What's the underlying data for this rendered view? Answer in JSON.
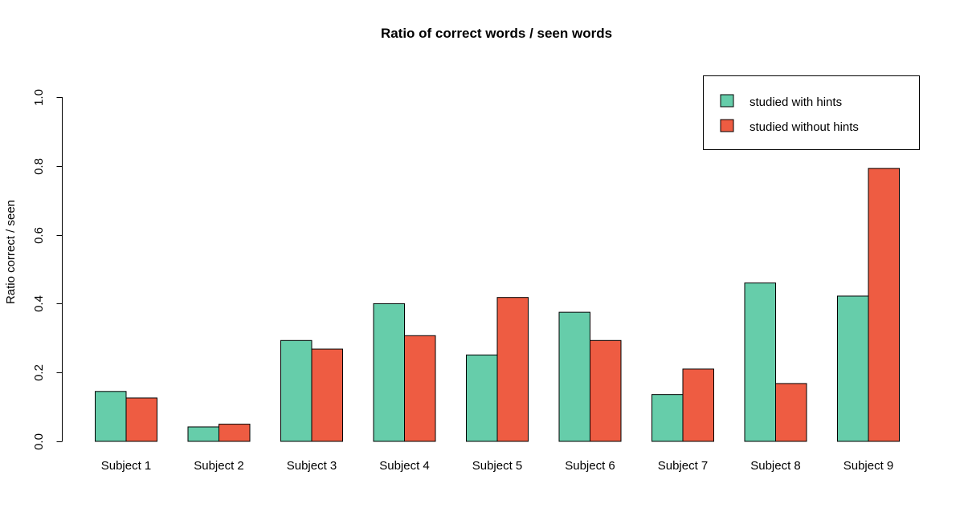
{
  "chart_data": {
    "type": "bar",
    "title": "Ratio of correct words / seen words",
    "xlabel": "",
    "ylabel": "Ratio correct / seen",
    "ylim": [
      0,
      1
    ],
    "yticks": [
      "0.0",
      "0.2",
      "0.4",
      "0.6",
      "0.8",
      "1.0"
    ],
    "categories": [
      "Subject 1",
      "Subject 2",
      "Subject 3",
      "Subject 4",
      "Subject 5",
      "Subject 6",
      "Subject 7",
      "Subject 8",
      "Subject 9"
    ],
    "series": [
      {
        "name": "studied with hints",
        "color": "#66cdaa",
        "values": [
          0.145,
          0.042,
          0.293,
          0.4,
          0.251,
          0.375,
          0.136,
          0.46,
          0.422
        ]
      },
      {
        "name": "studied without hints",
        "color": "#ee5c42",
        "values": [
          0.126,
          0.05,
          0.268,
          0.307,
          0.418,
          0.293,
          0.21,
          0.168,
          0.793
        ]
      }
    ],
    "grid": false,
    "legend": "top-right"
  }
}
